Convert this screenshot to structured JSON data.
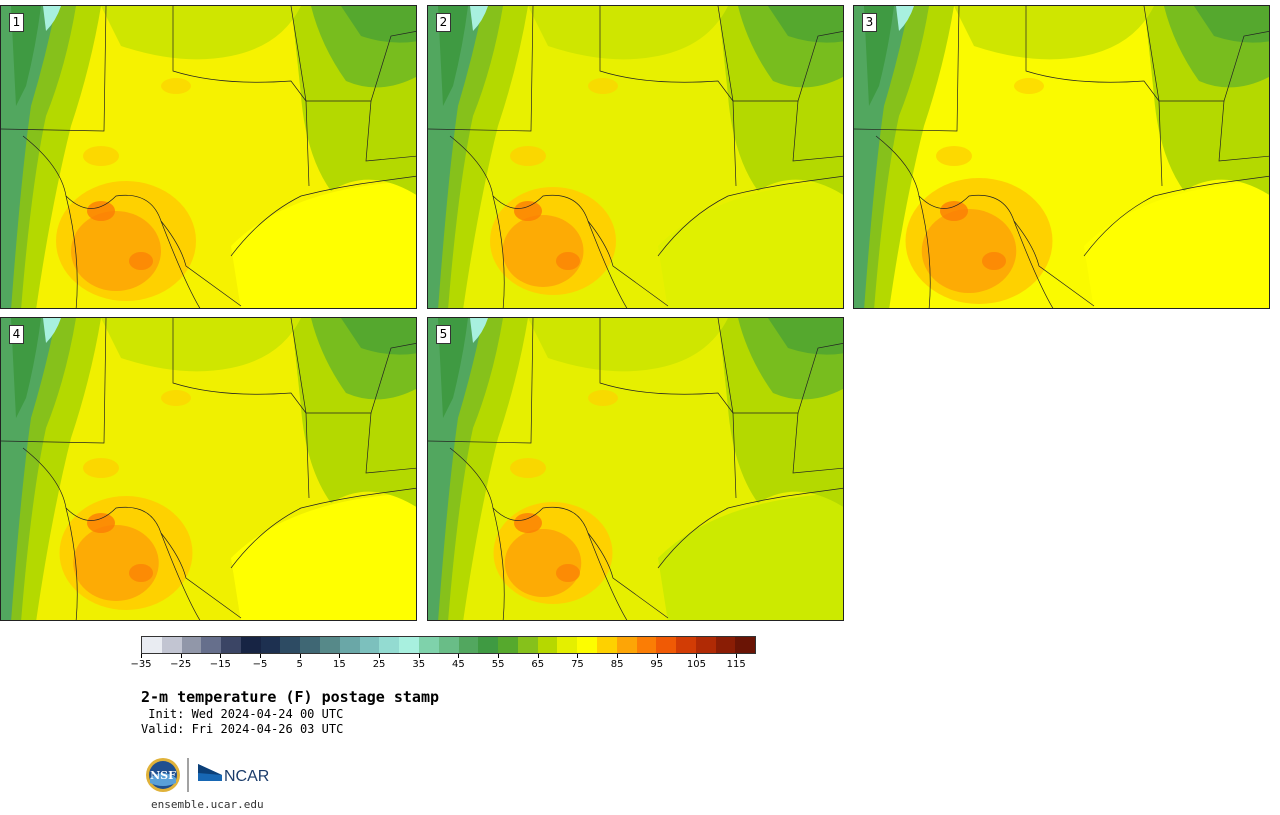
{
  "panels": [
    {
      "label": "1"
    },
    {
      "label": "2"
    },
    {
      "label": "3"
    },
    {
      "label": "4"
    },
    {
      "label": "5"
    }
  ],
  "colorbar": {
    "colors": [
      "#e9ecf2",
      "#c2c5d2",
      "#9197a9",
      "#666f8c",
      "#3b4565",
      "#172444",
      "#1d3050",
      "#2d4b63",
      "#3f6774",
      "#568989",
      "#6aa7a7",
      "#7cc0bd",
      "#93dbd1",
      "#a8f0df",
      "#7fd2ab",
      "#69bd87",
      "#52a75f",
      "#3f9a42",
      "#56a92d",
      "#86c11b",
      "#b6d800",
      "#e4ef00",
      "#fdfd00",
      "#fed100",
      "#fda506",
      "#fb7d05",
      "#f05a05",
      "#d23c05",
      "#b02a05",
      "#8a1d05",
      "#6a1405"
    ],
    "ticks": [
      "−35",
      "−25",
      "−15",
      "−5",
      "5",
      "15",
      "25",
      "35",
      "45",
      "55",
      "65",
      "75",
      "85",
      "95",
      "105",
      "115"
    ]
  },
  "title": "2-m temperature (F) postage stamp",
  "init": " Init: Wed 2024-04-24 00 UTC",
  "valid": "Valid: Fri 2024-04-26 03 UTC",
  "logos": {
    "nsf_text": "NSF",
    "ncar_text": "NCAR"
  },
  "site": "ensemble.ucar.edu"
}
